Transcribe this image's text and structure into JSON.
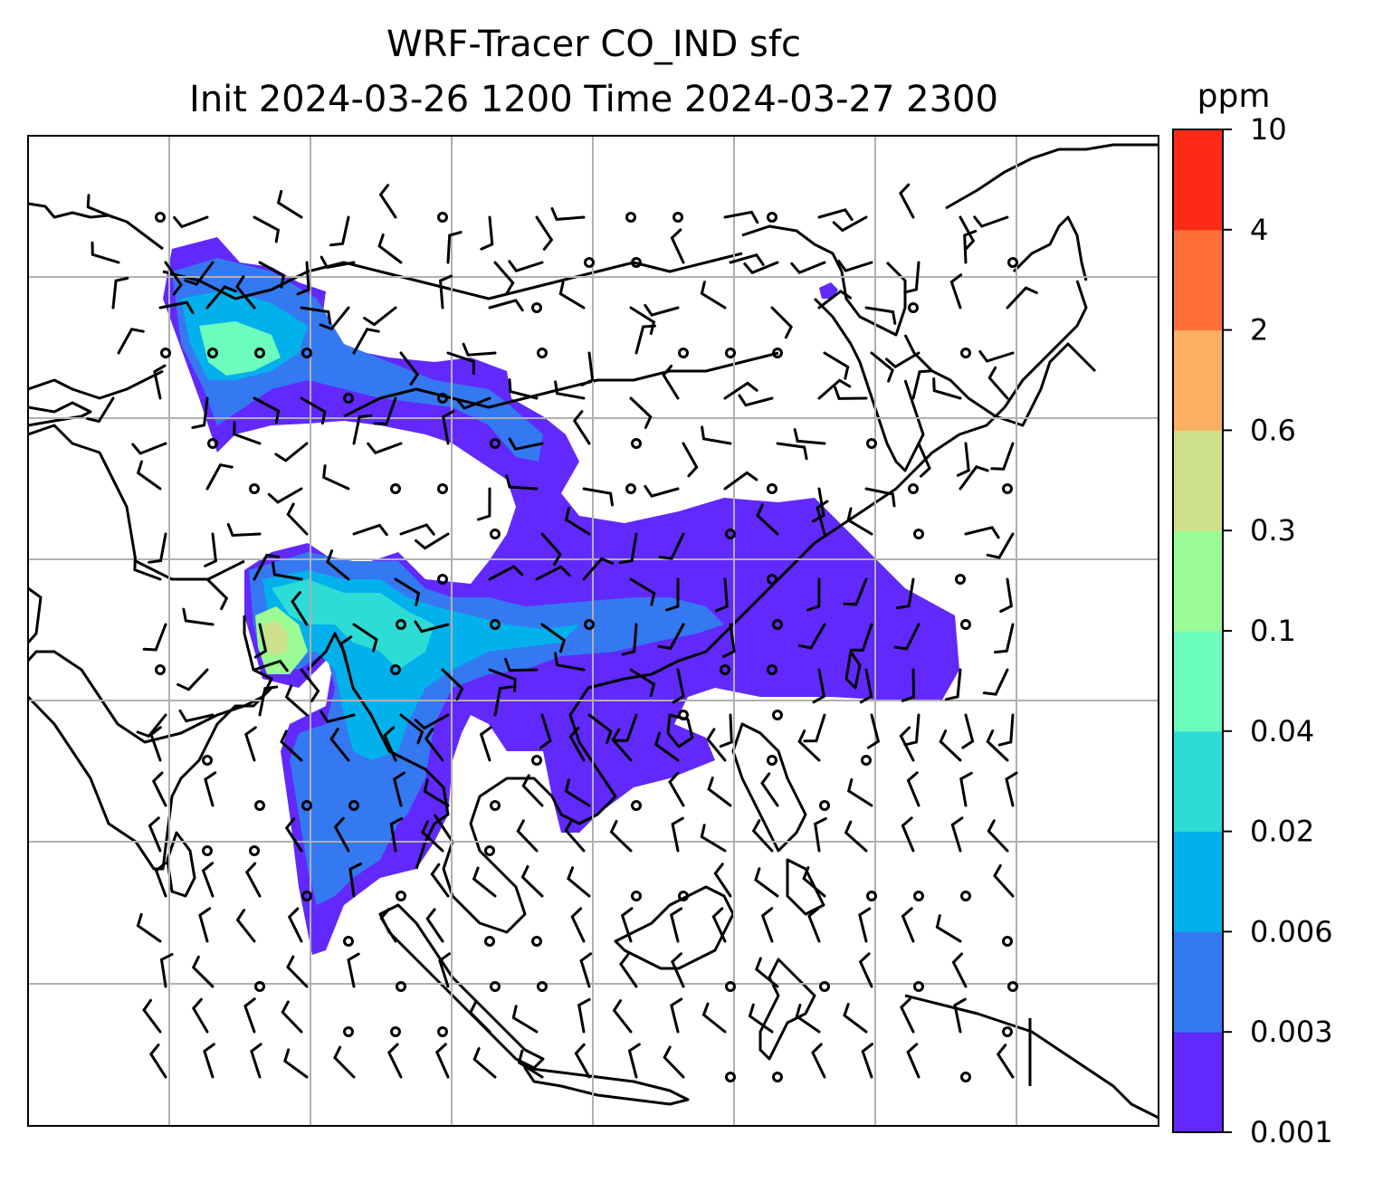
{
  "title": {
    "line1": "WRF-Tracer CO_IND sfc",
    "line2": "Init 2024-03-26 1200 Time 2024-03-27 2300"
  },
  "colorbar": {
    "unit": "ppm",
    "levels": [
      "0.001",
      "0.003",
      "0.006",
      "0.02",
      "0.04",
      "0.1",
      "0.3",
      "0.6",
      "2",
      "4",
      "10"
    ],
    "colors": [
      "#6129fc",
      "#3479f1",
      "#02b1ec",
      "#2edcd6",
      "#6cfcbd",
      "#9bfb95",
      "#cfe08c",
      "#feb062",
      "#fe7038",
      "#fe2a17"
    ]
  },
  "map": {
    "field": "CO_IND",
    "gridlines": true,
    "gridline_color": "#b0b0b0",
    "coastline_color": "#000000",
    "wind_barbs": true
  }
}
